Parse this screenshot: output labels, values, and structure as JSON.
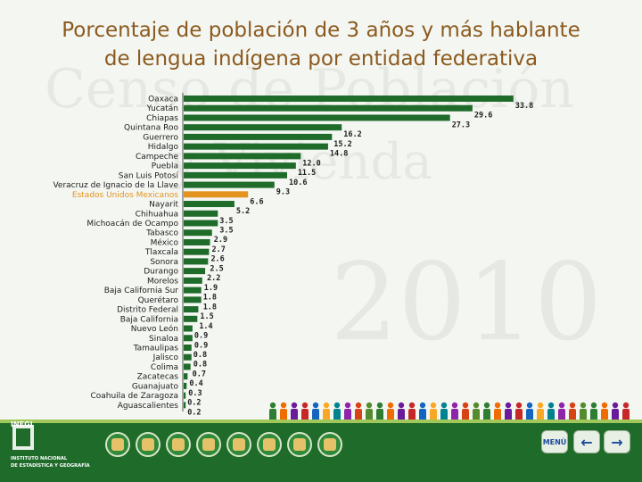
{
  "title": {
    "line1": "Porcentaje de población de 3 años y más hablante",
    "line2": "de lengua indígena por entidad federativa"
  },
  "watermark": {
    "line1": "Censo de Población",
    "line2": "y Vivienda",
    "year": "2010"
  },
  "colors": {
    "bar": "#1f6b2a",
    "highlight": "#e39420",
    "title": "#8b5a1e",
    "footer": "#1f6b2a"
  },
  "chart_data": {
    "type": "bar",
    "orientation": "horizontal",
    "title": "Porcentaje de población de 3 años y más hablante de lengua indígena por entidad federativa",
    "highlight_category": "Estados Unidos Mexicanos",
    "categories": [
      "Oaxaca",
      "Yucatán",
      "Chiapas",
      "Quintana Roo",
      "Guerrero",
      "Hidalgo",
      "Campeche",
      "Puebla",
      "San Luis Potosí",
      "Veracruz de Ignacio de la Llave",
      "Estados Unidos Mexicanos",
      "Nayarit",
      "Chihuahua",
      "Michoacán de Ocampo",
      "Tabasco",
      "México",
      "Tlaxcala",
      "Sonora",
      "Durango",
      "Morelos",
      "Baja California Sur",
      "Querétaro",
      "Distrito Federal",
      "Baja California",
      "Nuevo León",
      "Sinaloa",
      "Tamaulipas",
      "Jalisco",
      "Colima",
      "Zacatecas",
      "Guanajuato",
      "Coahuila de Zaragoza",
      "Aguascalientes"
    ],
    "values": [
      33.8,
      29.6,
      27.3,
      16.2,
      15.2,
      14.8,
      12.0,
      11.5,
      10.6,
      9.3,
      6.6,
      5.2,
      3.5,
      3.5,
      2.9,
      2.7,
      2.6,
      2.5,
      2.2,
      1.9,
      1.8,
      1.8,
      1.5,
      1.4,
      0.9,
      0.9,
      0.8,
      0.8,
      0.7,
      0.4,
      0.3,
      0.2,
      0.2
    ],
    "labels": [
      "33.8",
      "29.6",
      "27.3",
      "16.2",
      "15.2",
      "14.8",
      "12.0",
      "11.5",
      "10.6",
      "9.3",
      "6.6",
      "5.2",
      "3.5",
      "3.5",
      "2.9",
      "2.7",
      "2.6",
      "2.5",
      "2.2",
      "1.9",
      "1.8",
      "1.8",
      "1.5",
      "1.4",
      "0.9",
      "0.9",
      "0.8",
      "0.8",
      "0.7",
      "0.4",
      "0.3",
      "0.2",
      "0.2"
    ],
    "xlim": [
      0,
      34
    ]
  },
  "footer": {
    "logo_text": "INEGI",
    "org_line1": "INSTITUTO NACIONAL",
    "org_line2": "DE ESTADÍSTICA Y GEOGRAFÍA",
    "menu_label": "MENÚ",
    "prev_icon": "arrow-left-icon",
    "next_icon": "arrow-right-icon"
  }
}
